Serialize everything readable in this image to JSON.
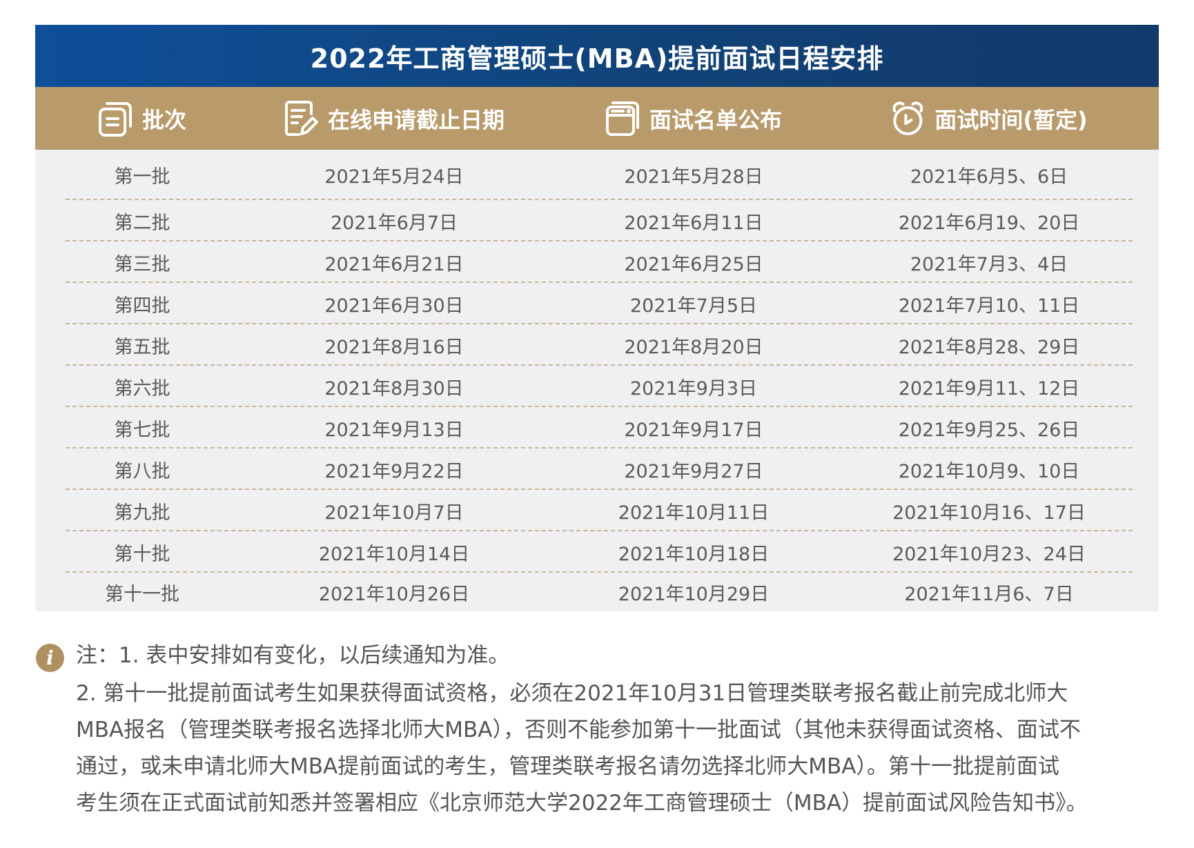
{
  "title": "2022年工商管理硕士(MBA)提前面试日程安排",
  "colors": {
    "title_bg_start": "#0e4f9a",
    "title_bg_end": "#12396b",
    "header_bg": "#b89a6b",
    "body_bg": "#f0f0f2",
    "separator": "#c7b595",
    "info_icon": "#b08f60"
  },
  "columns": [
    {
      "label": "批次",
      "icon": "stack-list-icon"
    },
    {
      "label": "在线申请截止日期",
      "icon": "document-edit-icon"
    },
    {
      "label": "面试名单公布",
      "icon": "browser-window-icon"
    },
    {
      "label": "面试时间(暂定)",
      "icon": "alarm-clock-icon"
    }
  ],
  "rows": [
    [
      "第一批",
      "2021年5月24日",
      "2021年5月28日",
      "2021年6月5、6日"
    ],
    [
      "第二批",
      "2021年6月7日",
      "2021年6月11日",
      "2021年6月19、20日"
    ],
    [
      "第三批",
      "2021年6月21日",
      "2021年6月25日",
      "2021年7月3、4日"
    ],
    [
      "第四批",
      "2021年6月30日",
      "2021年7月5日",
      "2021年7月10、11日"
    ],
    [
      "第五批",
      "2021年8月16日",
      "2021年8月20日",
      "2021年8月28、29日"
    ],
    [
      "第六批",
      "2021年8月30日",
      "2021年9月3日",
      "2021年9月11、12日"
    ],
    [
      "第七批",
      "2021年9月13日",
      "2021年9月17日",
      "2021年9月25、26日"
    ],
    [
      "第八批",
      "2021年9月22日",
      "2021年9月27日",
      "2021年10月9、10日"
    ],
    [
      "第九批",
      "2021年10月7日",
      "2021年10月11日",
      "2021年10月16、17日"
    ],
    [
      "第十批",
      "2021年10月14日",
      "2021年10月18日",
      "2021年10月23、24日"
    ],
    [
      "第十一批",
      "2021年10月26日",
      "2021年10月29日",
      "2021年11月6、7日"
    ]
  ],
  "notes": {
    "icon": "info-icon",
    "icon_glyph": "i",
    "lines": [
      "注：1. 表中安排如有变化，以后续通知为准。",
      "2. 第十一批提前面试考生如果获得面试资格，必须在2021年10月31日管理类联考报名截止前完成北师大",
      "MBA报名（管理类联考报名选择北师大MBA），否则不能参加第十一批面试（其他未获得面试资格、面试不",
      "通过，或未申请北师大MBA提前面试的考生，管理类联考报名请勿选择北师大MBA）。第十一批提前面试",
      "考生须在正式面试前知悉并签署相应《北京师范大学2022年工商管理硕士（MBA）提前面试风险告知书》。"
    ]
  }
}
